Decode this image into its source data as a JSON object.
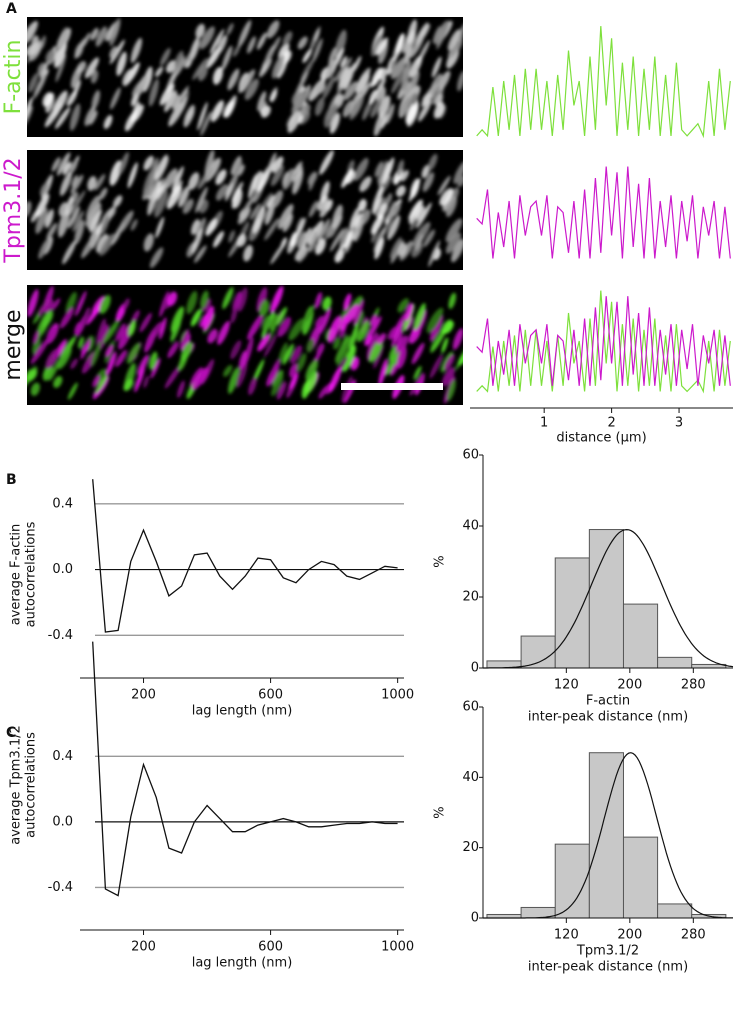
{
  "chart_data": [
    {
      "type": "profile",
      "panel": "A",
      "x": [
        0,
        0.08,
        0.16,
        0.24,
        0.32,
        0.4,
        0.48,
        0.56,
        0.64,
        0.72,
        0.8,
        0.88,
        0.96,
        1.04,
        1.12,
        1.2,
        1.28,
        1.36,
        1.44,
        1.52,
        1.6,
        1.68,
        1.76,
        1.84,
        1.92,
        2,
        2.08,
        2.16,
        2.24,
        2.32,
        2.4,
        2.48,
        2.56,
        2.64,
        2.72,
        2.8,
        2.88,
        2.96,
        3.04,
        3.12,
        3.2,
        3.28,
        3.36,
        3.44,
        3.52,
        3.6,
        3.68,
        3.76
      ],
      "series": [
        {
          "name": "F-actin",
          "color": "#7ee03c",
          "values": [
            0.05,
            0.1,
            0.05,
            0.45,
            0.05,
            0.5,
            0.1,
            0.55,
            0.05,
            0.6,
            0.1,
            0.6,
            0.1,
            0.5,
            0.05,
            0.55,
            0.1,
            0.75,
            0.3,
            0.5,
            0.05,
            0.7,
            0.1,
            0.95,
            0.3,
            0.85,
            0.05,
            0.65,
            0.1,
            0.7,
            0.05,
            0.6,
            0.1,
            0.7,
            0.05,
            0.55,
            0.05,
            0.65,
            0.1,
            0.05,
            0.1,
            0.15,
            0.05,
            0.5,
            0.05,
            0.6,
            0.1,
            0.5
          ]
        },
        {
          "name": "Tpm3.1/2",
          "color": "#cc1acc",
          "values": [
            0.45,
            0.4,
            0.7,
            0.1,
            0.5,
            0.2,
            0.6,
            0.1,
            0.65,
            0.3,
            0.55,
            0.6,
            0.3,
            0.65,
            0.1,
            0.55,
            0.5,
            0.15,
            0.6,
            0.1,
            0.7,
            0.1,
            0.8,
            0.15,
            0.9,
            0.3,
            0.85,
            0.1,
            0.9,
            0.2,
            0.75,
            0.1,
            0.8,
            0.1,
            0.6,
            0.2,
            0.65,
            0.1,
            0.6,
            0.25,
            0.65,
            0.1,
            0.55,
            0.3,
            0.6,
            0.1,
            0.55,
            0.1
          ]
        }
      ],
      "merge_label": "merge",
      "xlim": [
        -0.1,
        3.8
      ],
      "xticks": [
        1,
        2,
        3
      ],
      "ylim": [
        0,
        1
      ],
      "xlabel": "distance (µm)"
    },
    {
      "type": "line",
      "panel": "B",
      "x": [
        40,
        80,
        120,
        160,
        200,
        240,
        280,
        320,
        360,
        400,
        440,
        480,
        520,
        560,
        600,
        640,
        680,
        720,
        760,
        800,
        840,
        880,
        920,
        960,
        1000
      ],
      "values": [
        0.55,
        -0.38,
        -0.37,
        0.05,
        0.24,
        0.05,
        -0.16,
        -0.1,
        0.09,
        0.1,
        -0.04,
        -0.12,
        -0.04,
        0.07,
        0.06,
        -0.05,
        -0.08,
        0,
        0.05,
        0.03,
        -0.04,
        -0.06,
        -0.02,
        0.02,
        0.01
      ],
      "xlim": [
        0,
        1020
      ],
      "xticks": [
        200,
        600,
        1000
      ],
      "ylim": [
        -0.66,
        0.6
      ],
      "yticks": [
        0.4,
        {
          "value": 0,
          "label": "0.0"
        },
        -0.4
      ],
      "xlabel": "lag length (nm)",
      "ylabel": [
        "average F-actin",
        "autocorrelations"
      ]
    },
    {
      "type": "histogram",
      "bins": [
        20,
        63,
        106,
        149,
        192,
        235,
        278,
        321
      ],
      "values": [
        2,
        9,
        31,
        39,
        18,
        3,
        1
      ],
      "fit": {
        "mean": 196,
        "sd": 44,
        "peak": 39
      },
      "xlim": [
        15,
        330
      ],
      "xticks": [
        120,
        200,
        280
      ],
      "ylim": [
        0,
        60
      ],
      "yticks": [
        0,
        20,
        40,
        60
      ],
      "ylabel": "%",
      "xlabel": [
        "F-actin",
        "inter-peak distance (nm)"
      ]
    },
    {
      "type": "line",
      "panel": "C",
      "x": [
        40,
        80,
        120,
        160,
        200,
        240,
        280,
        320,
        360,
        400,
        440,
        480,
        520,
        560,
        600,
        640,
        680,
        720,
        760,
        800,
        840,
        880,
        920,
        960,
        1000
      ],
      "values": [
        1.1,
        -0.41,
        -0.45,
        0.03,
        0.35,
        0.15,
        -0.16,
        -0.19,
        0,
        0.1,
        0.02,
        -0.06,
        -0.06,
        -0.02,
        0,
        0.02,
        0,
        -0.03,
        -0.03,
        -0.02,
        -0.01,
        -0.01,
        0,
        -0.01,
        -0.01
      ],
      "xlim": [
        0,
        1020
      ],
      "xticks": [
        200,
        600,
        1000
      ],
      "ylim": [
        -0.66,
        1.11
      ],
      "yticks": [
        0.4,
        {
          "value": 0,
          "label": "0.0"
        },
        -0.4
      ],
      "xlabel": "lag length (nm)",
      "ylabel": [
        "average Tpm3.1/2",
        "autocorrelations"
      ]
    },
    {
      "type": "histogram",
      "bins": [
        20,
        63,
        106,
        149,
        192,
        235,
        278,
        321
      ],
      "values": [
        1,
        3,
        21,
        47,
        23,
        4,
        1
      ],
      "fit": {
        "mean": 201,
        "sd": 33,
        "peak": 47
      },
      "xlim": [
        15,
        330
      ],
      "xticks": [
        120,
        200,
        280
      ],
      "ylim": [
        0,
        60
      ],
      "yticks": [
        0,
        20,
        40,
        60
      ],
      "ylabel": "%",
      "xlabel": [
        "Tpm3.1/2",
        "inter-peak distance (nm)"
      ]
    }
  ]
}
